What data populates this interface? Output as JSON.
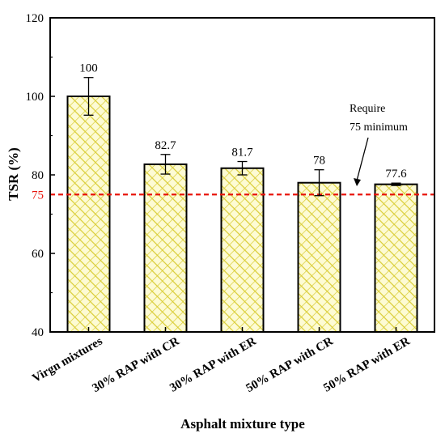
{
  "chart_data": {
    "type": "bar",
    "categories": [
      "Virgn mixtures",
      "30% RAP with CR",
      "30% RAP with ER",
      "50% RAP with CR",
      "50% RAP with ER"
    ],
    "values": [
      100,
      82.7,
      81.7,
      78,
      77.6
    ],
    "value_labels": [
      "100",
      "82.7",
      "81.7",
      "78",
      "77.6"
    ],
    "error_bars": [
      4.8,
      2.5,
      1.7,
      3.3,
      0.3
    ],
    "xlabel": "Asphalt mixture type",
    "ylabel": "TSR (%)",
    "ylim": [
      40,
      120
    ],
    "yticks": [
      40,
      60,
      80,
      100,
      120
    ],
    "threshold": {
      "value": 75,
      "label": "75",
      "color": "#e8150b",
      "style": "dashed"
    },
    "annotation": {
      "lines": [
        "Require",
        "75 minimum"
      ]
    },
    "bar_fill": "#fdfbd4",
    "bar_pattern_color": "#d9cc33",
    "grid": false,
    "legend": "none"
  }
}
